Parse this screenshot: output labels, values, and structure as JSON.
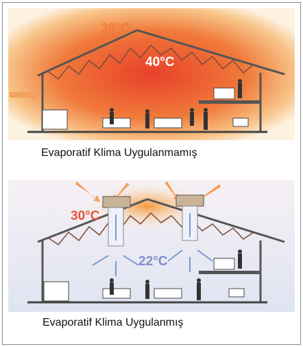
{
  "panels": [
    {
      "outside_temperature": "30°C",
      "inside_temperature": "40°C",
      "caption": "Evaporatif Klima Uygulanmamış"
    },
    {
      "outside_temperature": "30°C",
      "inside_temperature": "22°C",
      "caption": "Evaporatif Klima Uygulanmış"
    }
  ]
}
